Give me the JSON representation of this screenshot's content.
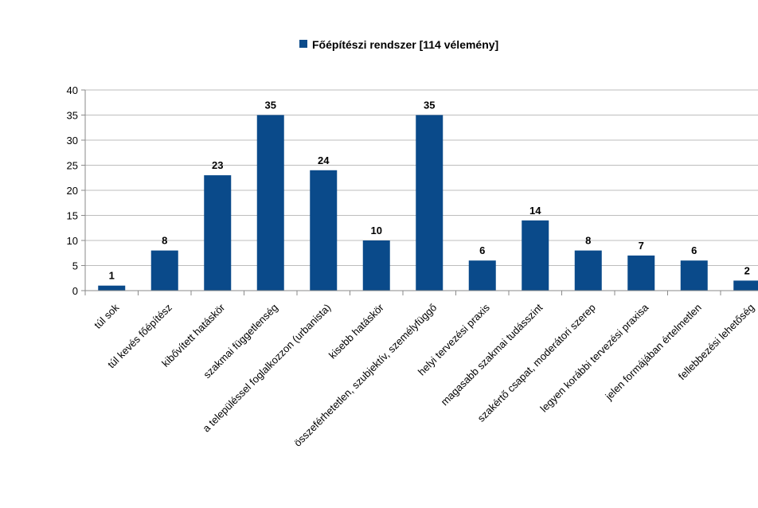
{
  "chart_data": {
    "type": "bar",
    "title": "",
    "xlabel": "",
    "ylabel": "",
    "ylim": [
      0,
      40
    ],
    "yticks": [
      0,
      5,
      10,
      15,
      20,
      25,
      30,
      35,
      40
    ],
    "grid": true,
    "legend_position": "top",
    "categories": [
      "túl sok",
      "túl kevés főépítész",
      "kibővített hatáskör",
      "szakmai függetlenség",
      "a településsel foglalkozzon (urbanista)",
      "kisebb hatáskör",
      "összeférhetetlen, szubjektív, személyfüggő",
      "helyi tervezési praxis",
      "magasabb szakmai tudásszint",
      "szakértő csapat, moderátori szerep",
      "legyen korábbi tervezési praxisa",
      "jelen formájában értelmetlen",
      "fellebbezési lehetőség"
    ],
    "series": [
      {
        "name": "Főépítészi rendszer [114 vélemény]",
        "color": "#0a4a8a",
        "values": [
          1,
          8,
          23,
          35,
          24,
          10,
          35,
          6,
          14,
          8,
          7,
          6,
          2
        ]
      }
    ]
  }
}
